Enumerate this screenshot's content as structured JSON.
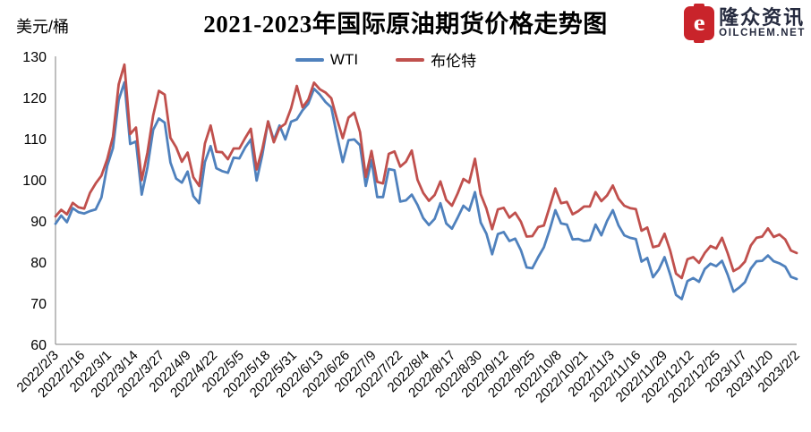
{
  "header": {
    "logo": {
      "icon_letter": "e",
      "name_cn": "隆众资讯",
      "name_en": "OILCHEM.NET"
    }
  },
  "chart_data": {
    "type": "line",
    "title": "2021-2023年国际原油期货价格走势图",
    "ylabel": "美元/桶",
    "ylim": [
      60,
      130
    ],
    "y_ticks": [
      60,
      70,
      80,
      90,
      100,
      110,
      120,
      130
    ],
    "grid": "off",
    "legend_position": "top-center",
    "axis_color": "#7f7f7f",
    "x_tick_labels": [
      "2022/2/3",
      "2022/2/16",
      "2022/3/1",
      "2022/3/14",
      "2022/3/27",
      "2022/4/9",
      "2022/4/22",
      "2022/5/5",
      "2022/5/18",
      "2022/5/31",
      "2022/6/13",
      "2022/6/26",
      "2022/7/9",
      "2022/7/22",
      "2022/8/4",
      "2022/8/17",
      "2022/8/30",
      "2022/9/12",
      "2022/9/25",
      "2022/10/8",
      "2022/10/21",
      "2022/11/3",
      "2022/11/16",
      "2022/11/29",
      "2022/12/12",
      "2022/12/25",
      "2023/1/7",
      "2023/1/20",
      "2023/2/2"
    ],
    "series": [
      {
        "name": "WTI",
        "color": "#4F81BD",
        "values": [
          89.3,
          91.3,
          89.7,
          93.1,
          92.1,
          91.8,
          92.4,
          92.8,
          95.7,
          103.4,
          107.7,
          119.4,
          123.7,
          108.7,
          109.3,
          96.4,
          103.0,
          112.1,
          114.9,
          113.9,
          104.2,
          100.3,
          99.3,
          102.0,
          96.0,
          94.3,
          104.3,
          108.2,
          102.8,
          102.1,
          101.7,
          105.4,
          105.2,
          107.8,
          109.8,
          99.8,
          106.1,
          114.2,
          109.6,
          113.2,
          109.8,
          114.1,
          114.7,
          116.9,
          118.5,
          122.1,
          120.7,
          118.9,
          117.6,
          110.7,
          104.3,
          109.6,
          109.8,
          108.4,
          98.5,
          104.8,
          95.8,
          95.8,
          102.6,
          102.3,
          94.7,
          95.0,
          96.4,
          93.9,
          90.7,
          89.0,
          90.5,
          94.3,
          89.4,
          88.1,
          90.8,
          93.7,
          92.5,
          97.0,
          89.6,
          86.9,
          81.9,
          86.8,
          87.3,
          85.1,
          85.7,
          82.9,
          78.7,
          78.5,
          81.2,
          83.6,
          87.8,
          92.6,
          89.4,
          89.1,
          85.5,
          85.6,
          85.1,
          85.3,
          89.1,
          86.5,
          90.0,
          92.6,
          88.9,
          86.5,
          85.9,
          85.6,
          80.1,
          81.0,
          76.3,
          78.2,
          81.2,
          76.9,
          72.0,
          71.0,
          75.4,
          76.1,
          75.2,
          78.3,
          79.6,
          79.0,
          80.3,
          76.9,
          72.8,
          73.8,
          75.1,
          78.4,
          80.2,
          80.3,
          81.6,
          80.2,
          79.7,
          78.9,
          76.4,
          75.9
        ]
      },
      {
        "name": "布伦特",
        "color": "#C0504D",
        "values": [
          91.1,
          92.7,
          91.6,
          94.4,
          93.3,
          93.0,
          96.8,
          99.1,
          101.0,
          105.0,
          110.5,
          123.2,
          128.0,
          111.1,
          112.7,
          99.9,
          106.6,
          115.6,
          121.6,
          120.7,
          110.2,
          107.9,
          104.4,
          106.6,
          100.6,
          98.5,
          108.8,
          113.2,
          106.8,
          106.7,
          105.0,
          107.6,
          107.6,
          110.1,
          112.4,
          102.5,
          107.5,
          114.2,
          109.1,
          112.6,
          113.6,
          117.4,
          122.8,
          117.6,
          119.5,
          123.6,
          122.0,
          121.2,
          119.8,
          114.7,
          110.1,
          115.1,
          116.3,
          111.6,
          100.7,
          107.0,
          99.5,
          99.1,
          106.3,
          106.9,
          103.2,
          104.4,
          107.1,
          100.0,
          96.8,
          94.9,
          96.3,
          99.6,
          95.1,
          93.7,
          96.7,
          100.2,
          99.3,
          105.1,
          96.5,
          93.0,
          88.0,
          92.8,
          93.2,
          90.8,
          92.0,
          89.8,
          86.2,
          86.3,
          88.5,
          88.9,
          93.4,
          97.9,
          94.3,
          94.6,
          91.6,
          92.4,
          93.5,
          93.5,
          97.0,
          94.8,
          96.2,
          98.6,
          95.4,
          93.7,
          93.1,
          92.9,
          87.6,
          88.4,
          83.6,
          84.0,
          86.9,
          82.7,
          77.2,
          76.1,
          80.7,
          81.2,
          79.8,
          82.2,
          83.9,
          83.3,
          85.9,
          82.1,
          77.8,
          78.6,
          80.1,
          84.0,
          85.9,
          86.2,
          88.2,
          86.1,
          86.7,
          85.5,
          82.8,
          82.2
        ]
      }
    ]
  }
}
